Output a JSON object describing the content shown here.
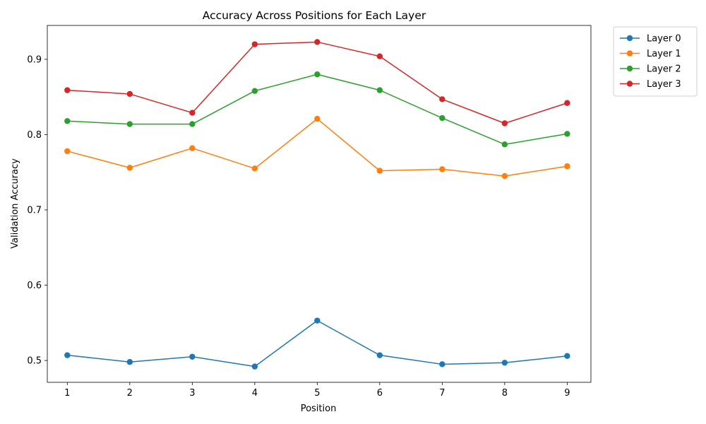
{
  "chart_data": {
    "type": "line",
    "title": "Accuracy Across Positions for Each Layer",
    "xlabel": "Position",
    "ylabel": "Validation Accuracy",
    "x": [
      1,
      2,
      3,
      4,
      5,
      6,
      7,
      8,
      9
    ],
    "xlim": [
      0.68,
      9.38
    ],
    "ylim": [
      0.471,
      0.945
    ],
    "yticks": [
      0.5,
      0.6,
      0.7,
      0.8,
      0.9
    ],
    "ytick_labels": [
      "0.5",
      "0.6",
      "0.7",
      "0.8",
      "0.9"
    ],
    "xtick_labels": [
      "1",
      "2",
      "3",
      "4",
      "5",
      "6",
      "7",
      "8",
      "9"
    ],
    "grid": false,
    "legend_position": "outside-top-right",
    "series": [
      {
        "name": "Layer 0",
        "color": "#1f77b4",
        "values": [
          0.507,
          0.498,
          0.505,
          0.492,
          0.553,
          0.507,
          0.495,
          0.497,
          0.506
        ]
      },
      {
        "name": "Layer 1",
        "color": "#ff7f0e",
        "values": [
          0.778,
          0.756,
          0.782,
          0.755,
          0.821,
          0.752,
          0.754,
          0.745,
          0.758
        ]
      },
      {
        "name": "Layer 2",
        "color": "#2ca02c",
        "values": [
          0.818,
          0.814,
          0.814,
          0.858,
          0.88,
          0.859,
          0.822,
          0.787,
          0.801
        ]
      },
      {
        "name": "Layer 3",
        "color": "#d62728",
        "values": [
          0.859,
          0.854,
          0.829,
          0.92,
          0.923,
          0.904,
          0.847,
          0.815,
          0.842
        ]
      }
    ]
  }
}
